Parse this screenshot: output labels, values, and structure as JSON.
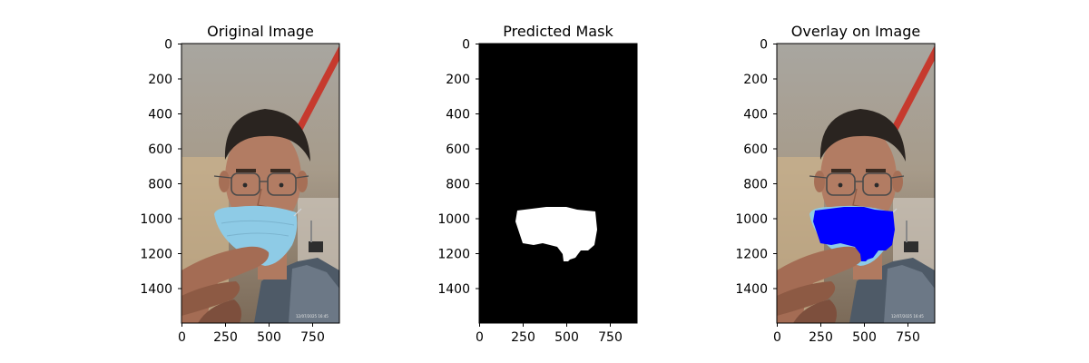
{
  "panels": [
    {
      "title": "Original Image",
      "kind": "photo",
      "stamp": "12/07/2025 16:45",
      "x_ticks": [
        "0",
        "250",
        "500",
        "750"
      ],
      "y_ticks": [
        "0",
        "200",
        "400",
        "600",
        "800",
        "1000",
        "1200",
        "1400"
      ]
    },
    {
      "title": "Predicted Mask",
      "kind": "mask",
      "x_ticks": [
        "0",
        "250",
        "500",
        "750"
      ],
      "y_ticks": [
        "0",
        "200",
        "400",
        "600",
        "800",
        "1000",
        "1200",
        "1400"
      ]
    },
    {
      "title": "Overlay on Image",
      "kind": "overlay",
      "stamp": "12/07/2025 16:45",
      "x_ticks": [
        "0",
        "250",
        "500",
        "750"
      ],
      "y_ticks": [
        "0",
        "200",
        "400",
        "600",
        "800",
        "1000",
        "1200",
        "1400"
      ]
    }
  ],
  "colors": {
    "mask_fg": "#ffffff",
    "mask_bg": "#000000",
    "overlay": "#0000ff",
    "face_mask": "#8ecbe6",
    "skin": "#b27c63",
    "hair": "#2a2420",
    "wall": "#a9a196",
    "pipe": "#c63a2e"
  }
}
